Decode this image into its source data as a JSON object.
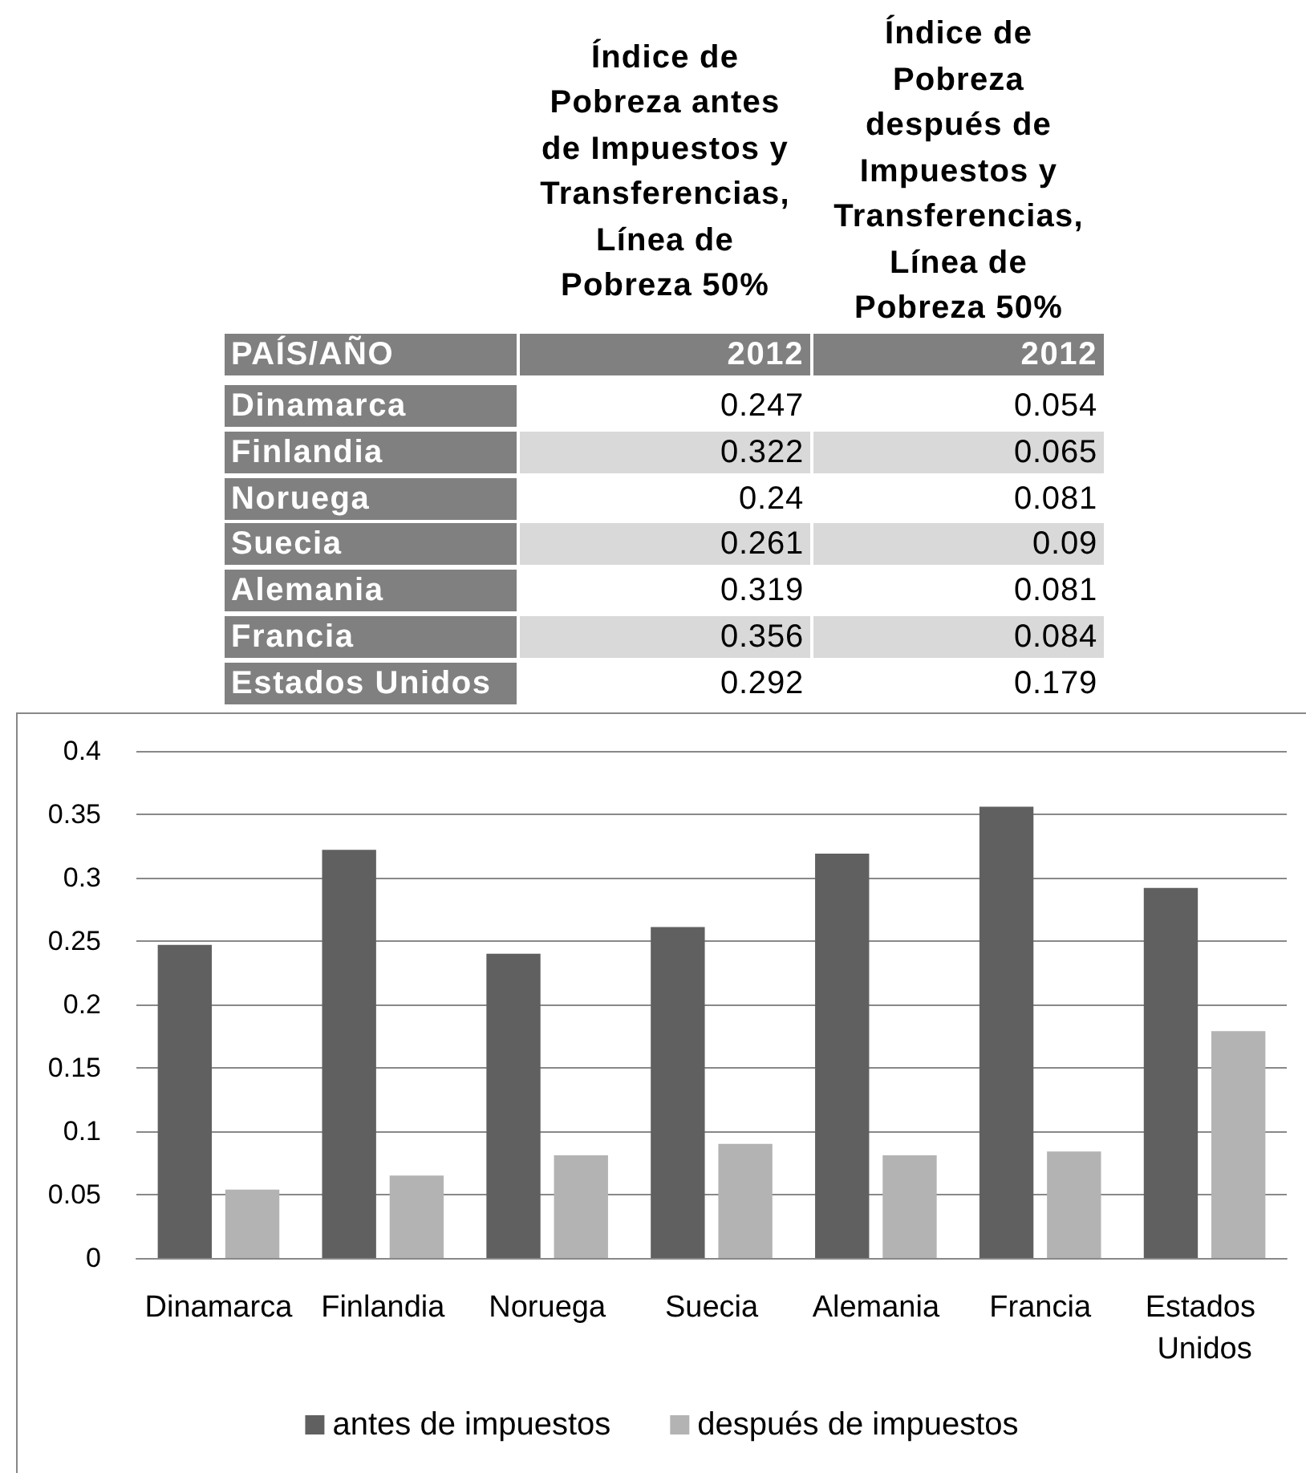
{
  "chart_data": [
    {
      "type": "other",
      "categories": [
        "Dinamarca",
        "Finlandia",
        "Noruega",
        "Suecia",
        "Alemania",
        "Francia",
        "Estados Unidos"
      ],
      "series": [
        {
          "name": "Índice de Pobreza antes de Impuestos y Transferencias, Línea de Pobreza 50%",
          "values": [
            0.247,
            0.322,
            0.24,
            0.261,
            0.319,
            0.356,
            0.292
          ],
          "colors": [
            "#ffffff",
            "#d9d9d9",
            "#ffffff",
            "#d9d9d9",
            "#ffffff",
            "#d9d9d9",
            "#ffffff"
          ]
        },
        {
          "name": "Índice de Pobreza después de Impuestos y Transferencias, Línea de Pobreza 50%",
          "values": [
            0.054,
            0.065,
            0.081,
            0.09,
            0.081,
            0.084,
            0.179
          ],
          "colors": [
            "#ffffff",
            "#d9d9d9",
            "#ffffff",
            "#d9d9d9",
            "#ffffff",
            "#d9d9d9",
            "#ffffff"
          ]
        }
      ],
      "data_labels": true,
      "annotations": [
        "PAÍS/AÑO",
        "2012",
        "2012"
      ]
    },
    {
      "type": "bar",
      "categories": [
        "Dinamarca",
        "Finlandia",
        "Noruega",
        "Suecia",
        "Alemania",
        "Francia",
        "Estados Unidos"
      ],
      "series": [
        {
          "name": "antes de impuestos",
          "color": "#606060",
          "values": [
            0.247,
            0.322,
            0.24,
            0.261,
            0.319,
            0.356,
            0.292
          ]
        },
        {
          "name": "después de impuestos",
          "color": "#b3b3b3",
          "values": [
            0.054,
            0.065,
            0.081,
            0.09,
            0.081,
            0.084,
            0.179
          ]
        }
      ],
      "ylim": [
        0,
        0.4
      ],
      "yticks": [
        0,
        0.05,
        0.1,
        0.15,
        0.2,
        0.25,
        0.3,
        0.35,
        0.4
      ],
      "grid": "y",
      "legend": "bottom"
    }
  ]
}
